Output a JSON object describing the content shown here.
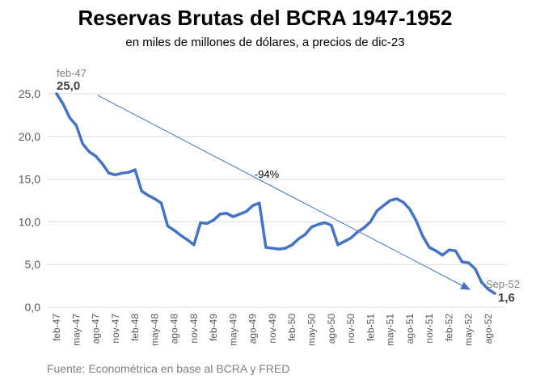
{
  "chart_data": {
    "type": "line",
    "title": "Reservas Brutas del BCRA 1947-1952",
    "subtitle": "en miles de millones de dólares, a precios de dic-23",
    "source": "Fuente: Econométrica en base al BCRA y FRED",
    "ylim": [
      0,
      25
    ],
    "yticks": [
      "0,0",
      "5,0",
      "10,0",
      "15,0",
      "20,0",
      "25,0"
    ],
    "xtick_labels": [
      "feb-47",
      "may-47",
      "ago-47",
      "nov-47",
      "feb-48",
      "may-48",
      "ago-48",
      "nov-48",
      "feb-49",
      "may-49",
      "ago-49",
      "nov-49",
      "feb-50",
      "may-50",
      "ago-50",
      "nov-50",
      "feb-51",
      "may-51",
      "ago-51",
      "nov-51",
      "feb-52",
      "may-52",
      "ago-52"
    ],
    "grid": true,
    "series": [
      {
        "color": "#4472C4",
        "values": [
          25.0,
          23.8,
          22.2,
          21.3,
          19.1,
          18.2,
          17.7,
          16.8,
          15.7,
          15.5,
          15.7,
          15.8,
          16.1,
          13.6,
          13.1,
          12.7,
          12.2,
          9.5,
          9.0,
          8.4,
          7.9,
          7.3,
          9.9,
          9.8,
          10.2,
          10.9,
          11.0,
          10.6,
          10.9,
          11.2,
          11.9,
          12.2,
          7.0,
          6.9,
          6.8,
          6.9,
          7.3,
          8.0,
          8.5,
          9.4,
          9.7,
          9.9,
          9.6,
          7.3,
          7.7,
          8.1,
          8.8,
          9.3,
          10.0,
          11.3,
          11.9,
          12.5,
          12.7,
          12.3,
          11.5,
          10.1,
          8.3,
          7.0,
          6.6,
          6.1,
          6.7,
          6.6,
          5.3,
          5.2,
          4.5,
          2.9,
          2.1,
          1.6
        ]
      }
    ],
    "annotations": {
      "start_label": "feb-47",
      "start_value": "25,0",
      "end_label": "Sep-52",
      "end_value": "1,6",
      "change": "-94%"
    }
  },
  "colors": {
    "line": "#4472C4",
    "trend": "#4472C4",
    "grid": "#d9d9d9"
  }
}
